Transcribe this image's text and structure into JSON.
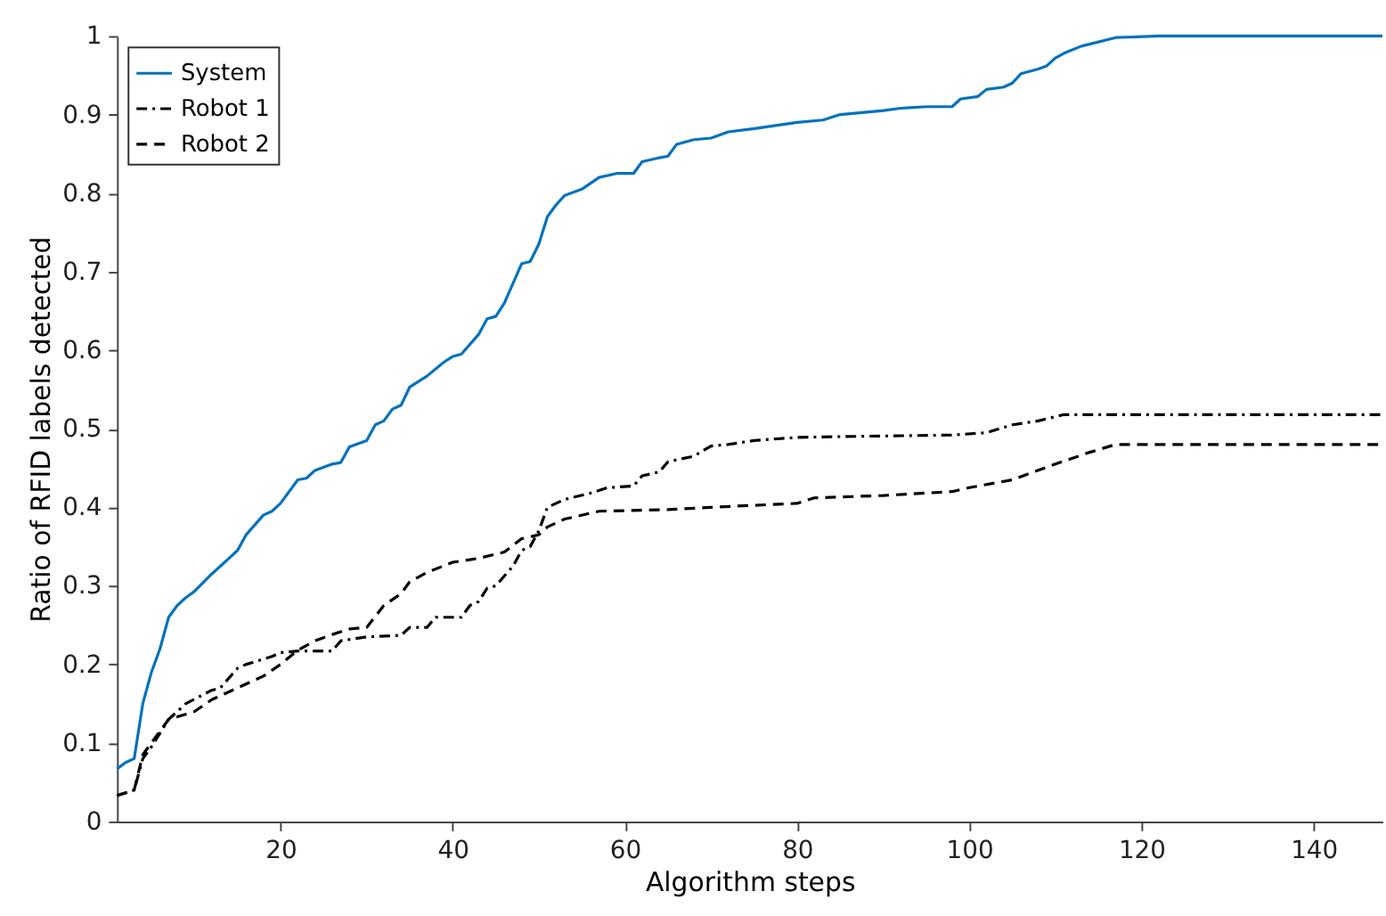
{
  "chart_data": {
    "type": "line",
    "xlabel": "Algorithm steps",
    "ylabel": "Ratio of RFID labels detected",
    "xlim": [
      1,
      148
    ],
    "ylim": [
      0,
      1
    ],
    "xticks": [
      20,
      40,
      60,
      80,
      100,
      120,
      140
    ],
    "yticks": [
      0,
      0.1,
      0.2,
      0.3,
      0.4,
      0.5,
      0.6,
      0.7,
      0.8,
      0.9,
      1
    ],
    "grid": false,
    "legend": "top left",
    "marker": "none",
    "series": [
      {
        "name": "System",
        "color": "#0072bd",
        "line_style": "solid",
        "x": [
          1,
          2,
          3,
          4,
          5,
          6,
          7,
          8,
          9,
          10,
          12,
          14,
          15,
          16,
          18,
          19,
          20,
          22,
          23,
          24,
          26,
          27,
          28,
          30,
          31,
          32,
          33,
          34,
          35,
          37,
          39,
          40,
          41,
          43,
          44,
          45,
          46,
          48,
          49,
          50,
          51,
          52,
          53,
          55,
          57,
          59,
          61,
          62,
          64,
          65,
          66,
          68,
          70,
          72,
          75,
          80,
          83,
          85,
          90,
          92,
          95,
          98,
          99,
          101,
          102,
          104,
          105,
          106,
          108,
          109,
          110,
          111,
          113,
          117,
          122,
          148
        ],
        "values": [
          0.067,
          0.075,
          0.08,
          0.15,
          0.19,
          0.22,
          0.26,
          0.275,
          0.285,
          0.293,
          0.315,
          0.335,
          0.345,
          0.365,
          0.39,
          0.395,
          0.405,
          0.435,
          0.437,
          0.447,
          0.455,
          0.457,
          0.477,
          0.485,
          0.505,
          0.51,
          0.525,
          0.53,
          0.553,
          0.567,
          0.585,
          0.592,
          0.595,
          0.62,
          0.64,
          0.643,
          0.66,
          0.71,
          0.713,
          0.735,
          0.77,
          0.785,
          0.797,
          0.805,
          0.82,
          0.825,
          0.825,
          0.84,
          0.845,
          0.847,
          0.862,
          0.868,
          0.87,
          0.878,
          0.882,
          0.89,
          0.893,
          0.9,
          0.905,
          0.908,
          0.91,
          0.91,
          0.92,
          0.923,
          0.932,
          0.935,
          0.94,
          0.952,
          0.958,
          0.962,
          0.972,
          0.978,
          0.987,
          0.998,
          1.0,
          1.0
        ]
      },
      {
        "name": "Robot 1",
        "color": "#000000",
        "line_style": "dashdot",
        "x": [
          1,
          3,
          4,
          5,
          7,
          9,
          12,
          13,
          15,
          16,
          19,
          20,
          22,
          26,
          27,
          30,
          34,
          35,
          37,
          38,
          41,
          42,
          43,
          44,
          45,
          47,
          48,
          49,
          50,
          51,
          53,
          56,
          58,
          61,
          62,
          64,
          65,
          68,
          70,
          72,
          75,
          80,
          85,
          98,
          102,
          105,
          108,
          111,
          148
        ],
        "values": [
          0.033,
          0.04,
          0.08,
          0.095,
          0.13,
          0.15,
          0.167,
          0.17,
          0.195,
          0.2,
          0.21,
          0.215,
          0.217,
          0.217,
          0.23,
          0.235,
          0.237,
          0.247,
          0.247,
          0.26,
          0.26,
          0.275,
          0.28,
          0.297,
          0.3,
          0.325,
          0.345,
          0.35,
          0.37,
          0.4,
          0.41,
          0.418,
          0.425,
          0.427,
          0.44,
          0.445,
          0.458,
          0.465,
          0.478,
          0.48,
          0.485,
          0.489,
          0.49,
          0.492,
          0.495,
          0.505,
          0.51,
          0.518,
          0.518
        ]
      },
      {
        "name": "Robot 2",
        "color": "#000000",
        "line_style": "dashed",
        "x": [
          1,
          3,
          4,
          5,
          7,
          10,
          12,
          14,
          18,
          20,
          22,
          24,
          26,
          28,
          30,
          32,
          34,
          35,
          37,
          40,
          43,
          46,
          48,
          50,
          51,
          53,
          57,
          65,
          70,
          80,
          82,
          90,
          98,
          100,
          105,
          110,
          114,
          117,
          148
        ],
        "values": [
          0.033,
          0.04,
          0.085,
          0.1,
          0.13,
          0.14,
          0.155,
          0.165,
          0.185,
          0.2,
          0.218,
          0.23,
          0.238,
          0.245,
          0.247,
          0.275,
          0.29,
          0.305,
          0.317,
          0.33,
          0.335,
          0.343,
          0.36,
          0.365,
          0.375,
          0.385,
          0.395,
          0.397,
          0.4,
          0.405,
          0.412,
          0.415,
          0.42,
          0.425,
          0.435,
          0.455,
          0.47,
          0.48,
          0.48
        ]
      }
    ]
  }
}
